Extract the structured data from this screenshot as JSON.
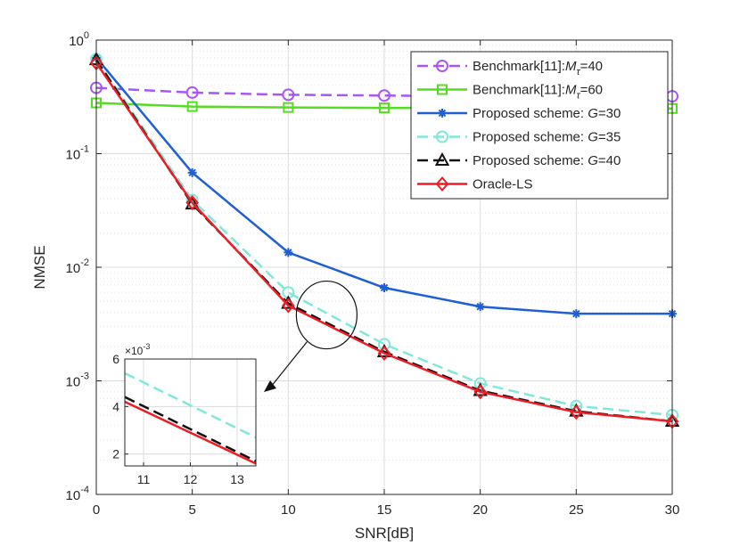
{
  "chart_data": {
    "type": "line",
    "ylabel": "NMSE",
    "xlabel": "SNR[dB]",
    "x": [
      0,
      5,
      10,
      15,
      20,
      25,
      30
    ],
    "xlim": [
      0,
      30
    ],
    "ylim": [
      0.0001,
      1
    ],
    "yscale": "log",
    "grid": true,
    "legend_position": "top-right",
    "x_ticks": [
      "0",
      "5",
      "10",
      "15",
      "20",
      "25",
      "30"
    ],
    "y_ticks": [
      {
        "base": "10",
        "exp": "0"
      },
      {
        "base": "10",
        "exp": "-1"
      },
      {
        "base": "10",
        "exp": "-2"
      },
      {
        "base": "10",
        "exp": "-3"
      },
      {
        "base": "10",
        "exp": "-4"
      }
    ],
    "series": [
      {
        "id": "bm40",
        "prefix": "Benchmark[11]:",
        "var": "M",
        "sub": "τ",
        "suffix": "=40",
        "color": "#a855f7",
        "dash": "12,6",
        "marker": "circle",
        "values": [
          0.38,
          0.345,
          0.33,
          0.325,
          0.32,
          0.318,
          0.32
        ]
      },
      {
        "id": "bm60",
        "prefix": "Benchmark[11]:",
        "var": "M",
        "sub": "τ",
        "suffix": "=60",
        "color": "#55dd22",
        "dash": "",
        "marker": "square",
        "values": [
          0.28,
          0.26,
          0.255,
          0.253,
          0.252,
          0.251,
          0.25
        ]
      },
      {
        "id": "g30",
        "prefix": "Proposed scheme: ",
        "var": "G",
        "sub": "",
        "suffix": "=30",
        "color": "#1e5fd6",
        "dash": "",
        "marker": "asterisk",
        "values": [
          0.7,
          0.068,
          0.0135,
          0.0066,
          0.0045,
          0.0039,
          0.0039
        ]
      },
      {
        "id": "g35",
        "prefix": "Proposed scheme: ",
        "var": "G",
        "sub": "",
        "suffix": "=35",
        "color": "#7fe8d8",
        "dash": "12,6",
        "marker": "circle",
        "values": [
          0.68,
          0.039,
          0.006,
          0.0021,
          0.00095,
          0.0006,
          0.0005
        ]
      },
      {
        "id": "g40",
        "prefix": "Proposed scheme: ",
        "var": "G",
        "sub": "",
        "suffix": "=40",
        "color": "#111111",
        "dash": "12,6",
        "marker": "triangle",
        "values": [
          0.67,
          0.036,
          0.0048,
          0.0018,
          0.00082,
          0.00054,
          0.00044
        ]
      },
      {
        "id": "ols",
        "prefix": "Oracle-LS",
        "var": "",
        "sub": "",
        "suffix": "",
        "color": "#ee1c25",
        "dash": "",
        "marker": "diamond",
        "values": [
          0.63,
          0.037,
          0.0046,
          0.00175,
          0.0008,
          0.00053,
          0.00044
        ]
      }
    ],
    "inset": {
      "xlim": [
        10.6,
        13.4
      ],
      "ylim": [
        0.0015,
        0.006
      ],
      "x_ticks": [
        "11",
        "12",
        "13"
      ],
      "y_ticks": [
        "2",
        "4",
        "6"
      ],
      "y_tick_values": [
        0.002,
        0.004,
        0.006
      ],
      "x_tick_values": [
        11,
        12,
        13
      ],
      "exponent_label": "×10",
      "exponent_power": "-3",
      "series": [
        {
          "id": "g35",
          "x": [
            10.6,
            13.4
          ],
          "values": [
            0.0054,
            0.0027
          ]
        },
        {
          "id": "g40",
          "x": [
            10.6,
            13.4
          ],
          "values": [
            0.0044,
            0.0017
          ]
        },
        {
          "id": "ols",
          "x": [
            10.6,
            13.4
          ],
          "values": [
            0.0042,
            0.0016
          ]
        }
      ]
    },
    "zoom_center": {
      "x": 12,
      "y": 0.0038
    }
  }
}
